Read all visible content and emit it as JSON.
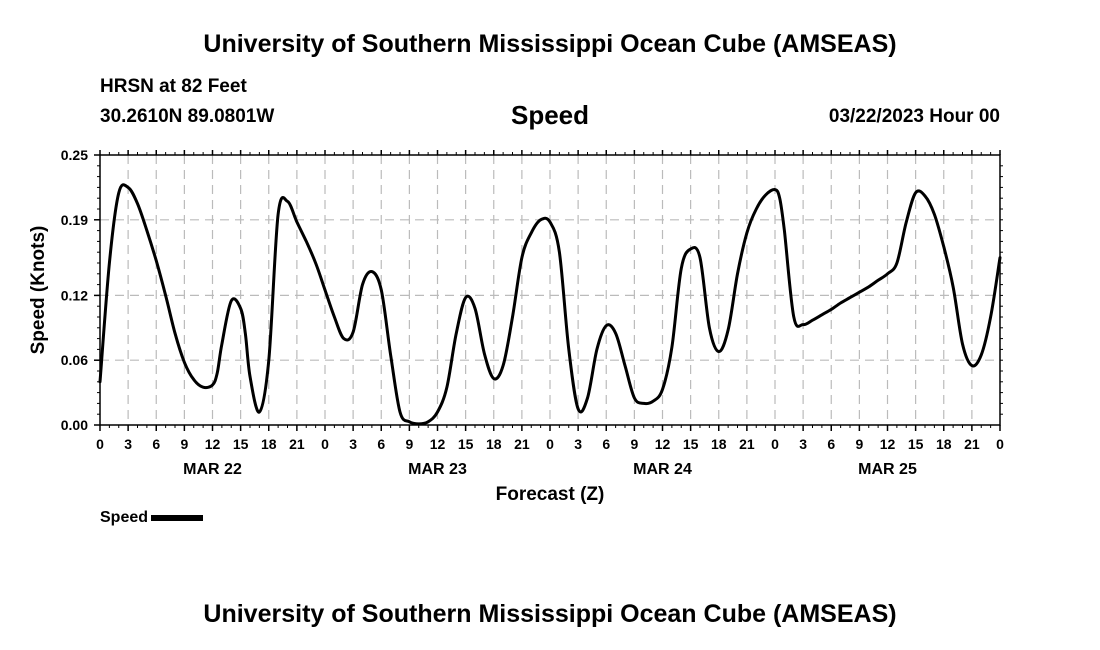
{
  "header": {
    "title_top": "University of Southern Mississippi Ocean Cube (AMSEAS)",
    "station": "HRSN at 82 Feet",
    "coords": "30.2610N  89.0801W",
    "date": "03/22/2023 Hour 00",
    "title_bottom": "University of Southern Mississippi Ocean Cube (AMSEAS)"
  },
  "legend": {
    "label": "Speed",
    "color": "#000000"
  },
  "chart_data": {
    "type": "line",
    "title": "Speed",
    "xlabel": "Forecast (Z)",
    "ylabel": "Speed (Knots)",
    "xlim": [
      0,
      96
    ],
    "ylim": [
      0,
      0.25
    ],
    "yticks": [
      0.0,
      0.06,
      0.12,
      0.19,
      0.25
    ],
    "ytick_labels": [
      "0.00",
      "0.06",
      "0.12",
      "0.19",
      "0.25"
    ],
    "xtick_step_hours": 3,
    "xtick_labels": [
      "0",
      "3",
      "6",
      "9",
      "12",
      "15",
      "18",
      "21",
      "0",
      "3",
      "6",
      "9",
      "12",
      "15",
      "18",
      "21",
      "0",
      "3",
      "6",
      "9",
      "12",
      "15",
      "18",
      "21",
      "0",
      "3",
      "6",
      "9",
      "12",
      "15",
      "18",
      "21",
      "0"
    ],
    "day_labels": [
      {
        "label": "MAR 22",
        "hour": 12
      },
      {
        "label": "MAR 23",
        "hour": 36
      },
      {
        "label": "MAR 24",
        "hour": 60
      },
      {
        "label": "MAR 25",
        "hour": 84
      }
    ],
    "grid": true,
    "series": [
      {
        "name": "Speed",
        "color": "#000000",
        "x": [
          0,
          1,
          2,
          3,
          4,
          5,
          6,
          7,
          8,
          9,
          10,
          11,
          12,
          12.5,
          13,
          14,
          15,
          15.5,
          16,
          17,
          18,
          19,
          20,
          21,
          22,
          23,
          24,
          25,
          26,
          27,
          28,
          29,
          30,
          31,
          32,
          33,
          34,
          35,
          36,
          37,
          38,
          39,
          40,
          41,
          42,
          43,
          44,
          45,
          46,
          47,
          48,
          49,
          50,
          51,
          52,
          53,
          54,
          55,
          56,
          57,
          58,
          59,
          60,
          61,
          62,
          63,
          64,
          65,
          66,
          67,
          68,
          69,
          70,
          71,
          72,
          72.5,
          73,
          74,
          75,
          76,
          77,
          78,
          79,
          80,
          81,
          82,
          83,
          84,
          85,
          86,
          87,
          88,
          89,
          90,
          91,
          92,
          93,
          94,
          95,
          96
        ],
        "values": [
          0.04,
          0.15,
          0.215,
          0.22,
          0.205,
          0.18,
          0.152,
          0.12,
          0.085,
          0.058,
          0.042,
          0.035,
          0.037,
          0.048,
          0.075,
          0.115,
          0.108,
          0.085,
          0.045,
          0.012,
          0.06,
          0.195,
          0.207,
          0.188,
          0.17,
          0.15,
          0.125,
          0.1,
          0.08,
          0.086,
          0.13,
          0.142,
          0.125,
          0.065,
          0.012,
          0.003,
          0.001,
          0.003,
          0.012,
          0.035,
          0.085,
          0.118,
          0.108,
          0.066,
          0.043,
          0.055,
          0.1,
          0.155,
          0.178,
          0.19,
          0.188,
          0.16,
          0.07,
          0.015,
          0.025,
          0.07,
          0.092,
          0.085,
          0.055,
          0.025,
          0.02,
          0.022,
          0.033,
          0.072,
          0.145,
          0.163,
          0.155,
          0.09,
          0.068,
          0.088,
          0.14,
          0.178,
          0.2,
          0.213,
          0.218,
          0.21,
          0.18,
          0.1,
          0.093,
          0.097,
          0.102,
          0.107,
          0.113,
          0.118,
          0.123,
          0.128,
          0.134,
          0.14,
          0.15,
          0.188,
          0.215,
          0.212,
          0.195,
          0.165,
          0.128,
          0.075,
          0.055,
          0.065,
          0.1,
          0.155
        ]
      }
    ]
  }
}
